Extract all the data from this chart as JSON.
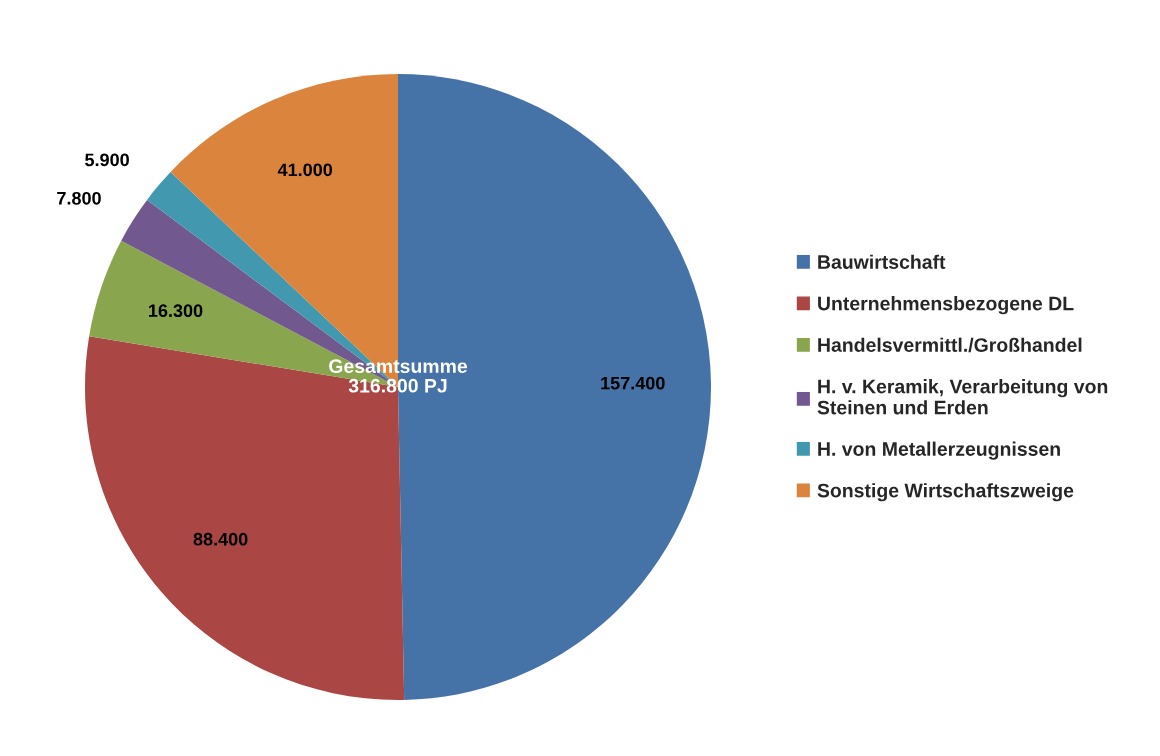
{
  "chart_data": {
    "type": "pie",
    "categories": [
      "Bauwirtschaft",
      "Unternehmensbezogene DL",
      "Handelsvermittl./Großhandel",
      "H. v. Keramik, Verarbeitung von\nSteinen und Erden",
      "H. von Metallerzeugnissen",
      "Sonstige Wirtschaftszweige"
    ],
    "values": [
      157400,
      88400,
      16300,
      7800,
      5900,
      41000
    ],
    "value_labels": [
      "157.400",
      "88.400",
      "16.300",
      "7.800",
      "5.900",
      "41.000"
    ],
    "colors": [
      "#4572a7",
      "#aa4643",
      "#89a54e",
      "#71588f",
      "#4198af",
      "#db843d"
    ],
    "annotations": [
      "Gesamtsumme\n316.800 PJ"
    ],
    "legend": "right"
  }
}
